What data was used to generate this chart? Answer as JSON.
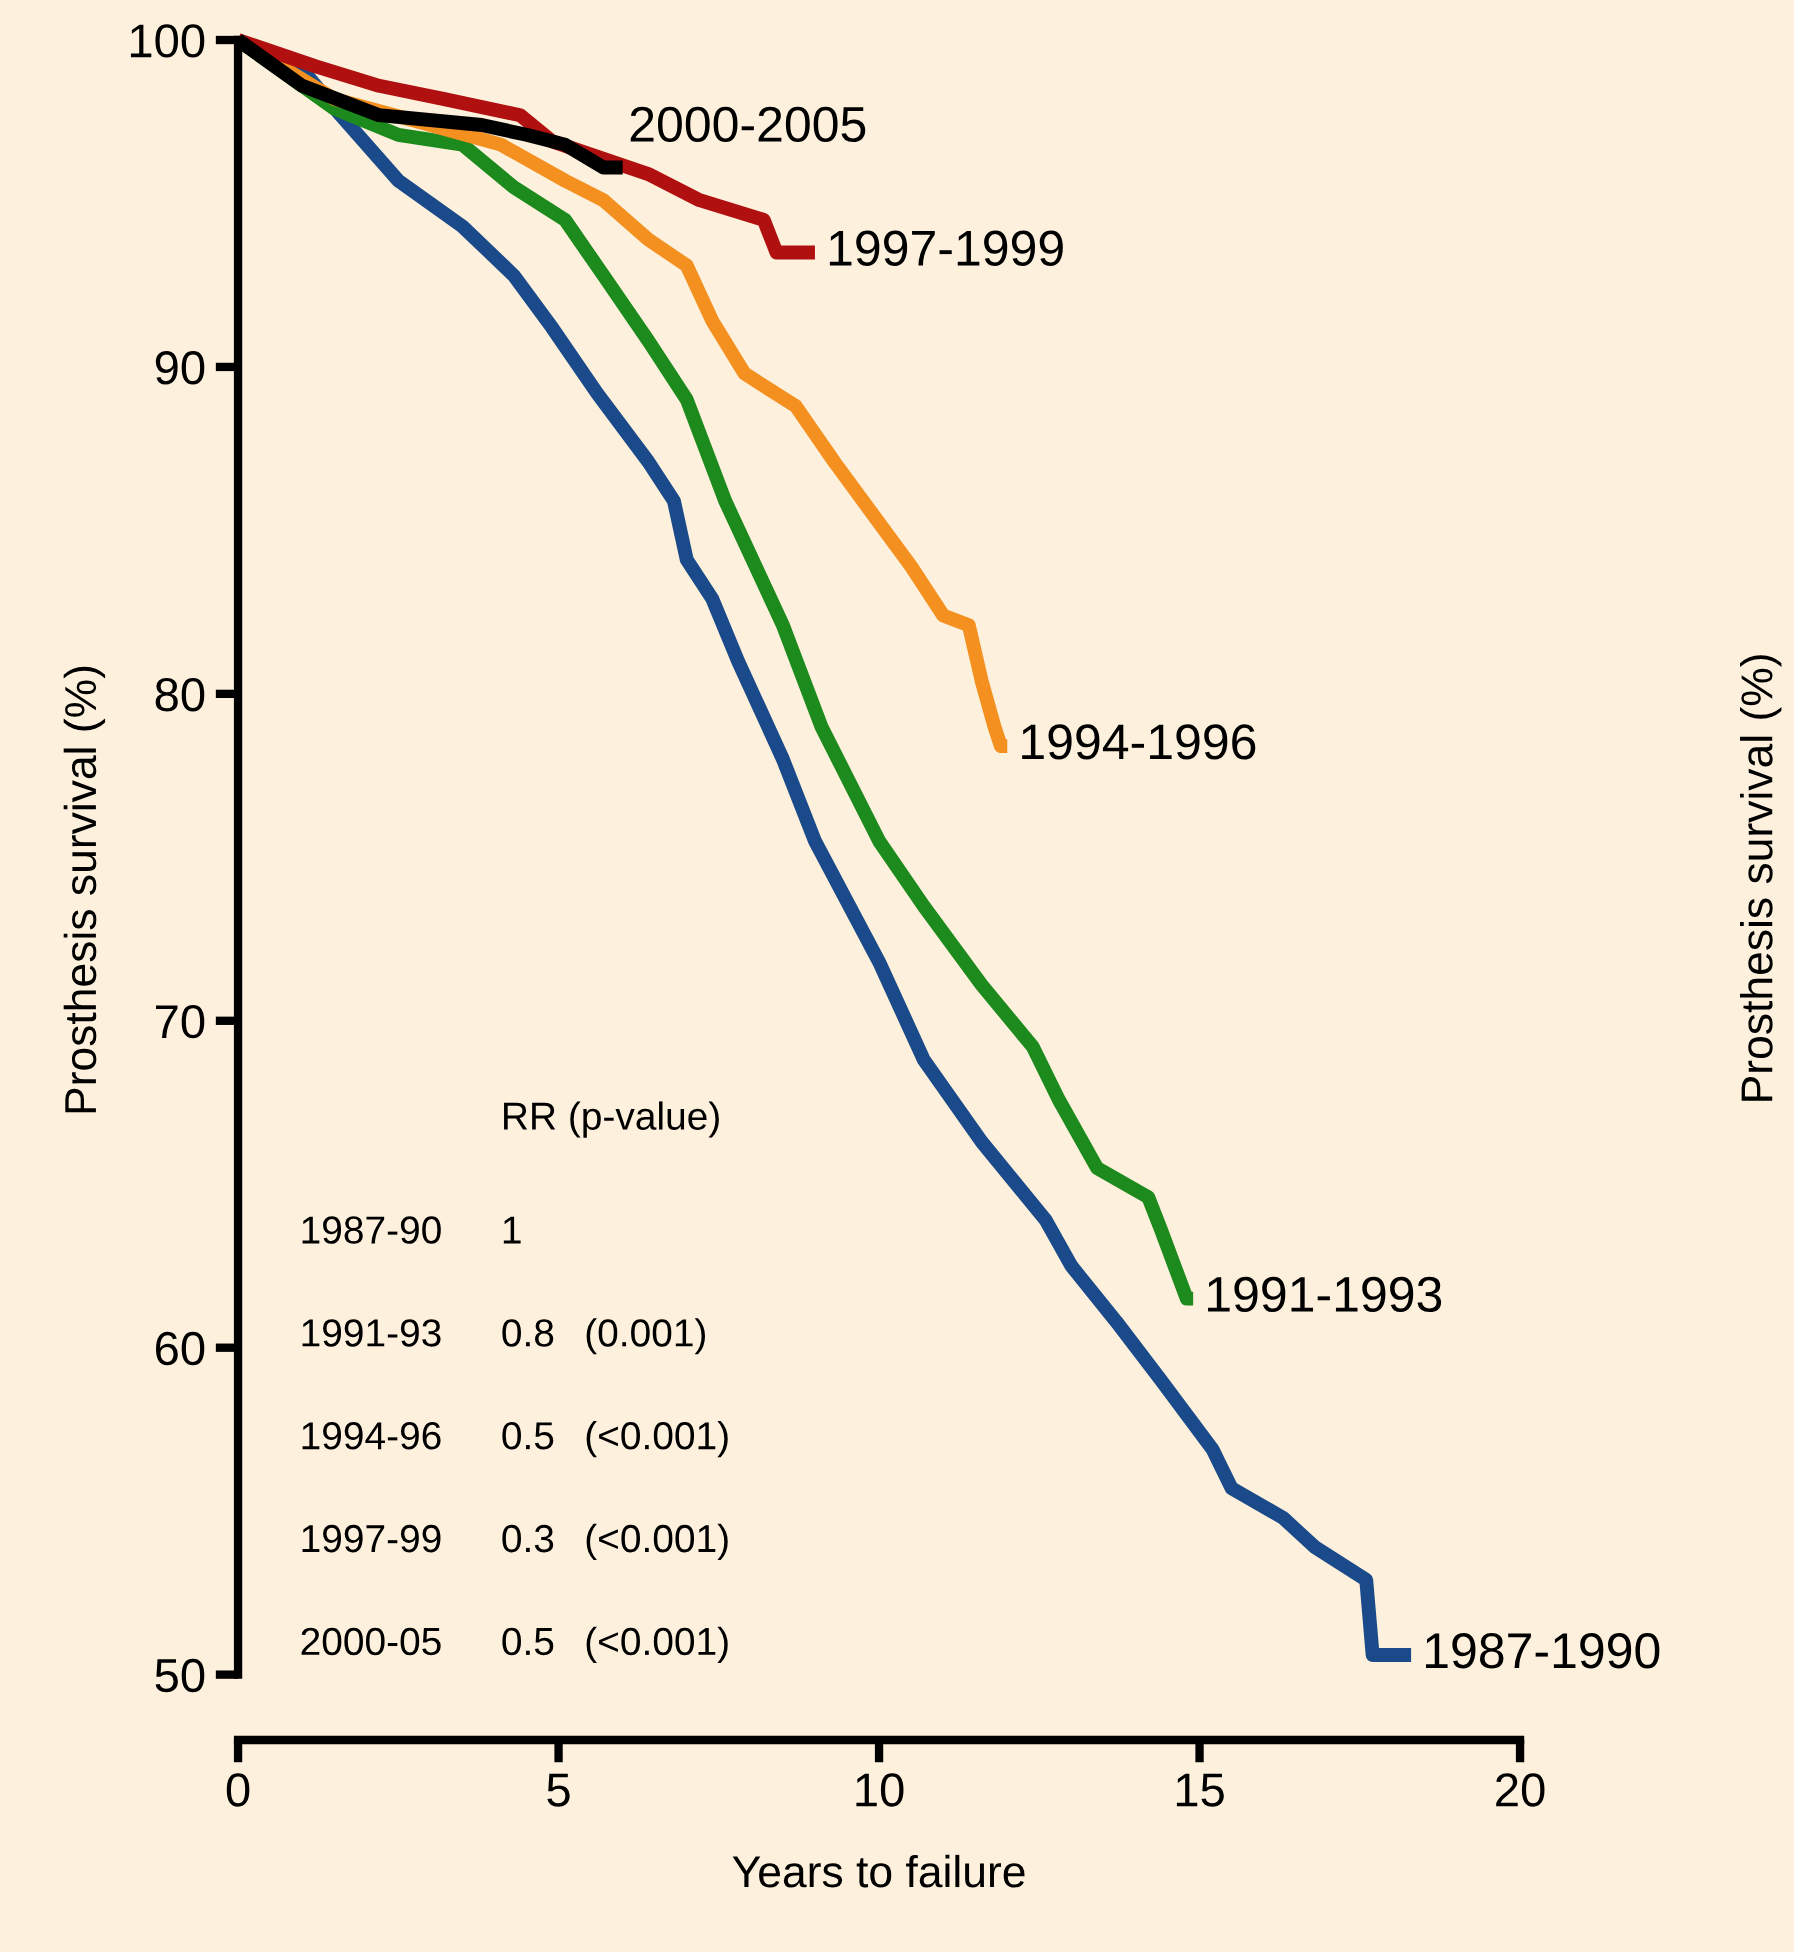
{
  "chart_data": {
    "type": "line",
    "xlabel": "Years to failure",
    "ylabel": "Prosthesis survival (%)",
    "xlim": [
      0,
      20
    ],
    "ylim": [
      48,
      100
    ],
    "xticks": [
      0,
      5,
      10,
      15,
      20
    ],
    "yticks": [
      50,
      60,
      70,
      80,
      90,
      100
    ],
    "grid": false,
    "legend": false,
    "series": [
      {
        "name": "1987-1990",
        "color": "#1a4a8a",
        "x": [
          0,
          1.0,
          1.6,
          2.5,
          3.5,
          4.3,
          4.9,
          5.6,
          6.4,
          6.8,
          7.0,
          7.4,
          7.8,
          8.5,
          9.0,
          10.0,
          10.7,
          11.6,
          12.6,
          13.0,
          13.7,
          14.4,
          15.2,
          15.5,
          16.3,
          16.8,
          17.6,
          17.7,
          18.3
        ],
        "values": [
          100,
          99.1,
          97.7,
          95.7,
          94.3,
          92.8,
          91.2,
          89.2,
          87.1,
          85.9,
          84.1,
          82.9,
          81.0,
          78.0,
          75.5,
          71.8,
          68.8,
          66.3,
          63.9,
          62.5,
          60.8,
          59.0,
          56.9,
          55.7,
          54.8,
          53.9,
          52.9,
          50.6,
          50.6
        ]
      },
      {
        "name": "1991-1993",
        "color": "#1c8a1c",
        "x": [
          0,
          1.5,
          2.5,
          3.5,
          4.3,
          5.1,
          5.7,
          6.4,
          7.0,
          7.6,
          8.5,
          9.1,
          10.0,
          10.7,
          11.6,
          12.4,
          12.8,
          13.4,
          14.2,
          14.4,
          14.8,
          14.9
        ],
        "values": [
          100,
          97.9,
          97.1,
          96.8,
          95.5,
          94.5,
          92.8,
          90.8,
          89.0,
          85.9,
          82.1,
          79.0,
          75.5,
          73.5,
          71.1,
          69.2,
          67.6,
          65.5,
          64.6,
          63.6,
          61.5,
          61.5
        ]
      },
      {
        "name": "1994-1996",
        "color": "#f39020",
        "x": [
          0,
          1.5,
          3.0,
          4.1,
          5.1,
          5.7,
          6.4,
          7.0,
          7.4,
          7.9,
          8.7,
          9.3,
          9.9,
          10.5,
          11.0,
          11.4,
          11.6,
          11.8,
          11.9,
          12.0
        ],
        "values": [
          100,
          98.2,
          97.4,
          96.8,
          95.7,
          95.1,
          93.9,
          93.1,
          91.4,
          89.8,
          88.8,
          87.1,
          85.5,
          83.9,
          82.4,
          82.1,
          80.4,
          79.0,
          78.4,
          78.4
        ]
      },
      {
        "name": "1997-1999",
        "color": "#b01010",
        "x": [
          0,
          1.2,
          2.2,
          3.2,
          4.4,
          4.9,
          6.4,
          7.2,
          8.2,
          8.4,
          9.0
        ],
        "values": [
          100,
          99.2,
          98.6,
          98.2,
          97.7,
          96.9,
          95.9,
          95.1,
          94.5,
          93.5,
          93.5
        ]
      },
      {
        "name": "2000-2005",
        "color": "#000000",
        "x": [
          0,
          1.0,
          2.2,
          3.8,
          4.5,
          5.1,
          5.7,
          6.0
        ],
        "values": [
          100,
          98.6,
          97.7,
          97.4,
          97.1,
          96.8,
          96.1,
          96.1
        ]
      }
    ],
    "annotations": [
      "RR (p-value)",
      "1987-90",
      "1",
      "1991-93",
      "0.8",
      "(0.001)",
      "1994-96",
      "0.5",
      "(<0.001)",
      "1997-99",
      "0.3",
      "(<0.001)",
      "2000-05",
      "0.5",
      "(<0.001)",
      "Prosthesis survival (%)"
    ]
  }
}
